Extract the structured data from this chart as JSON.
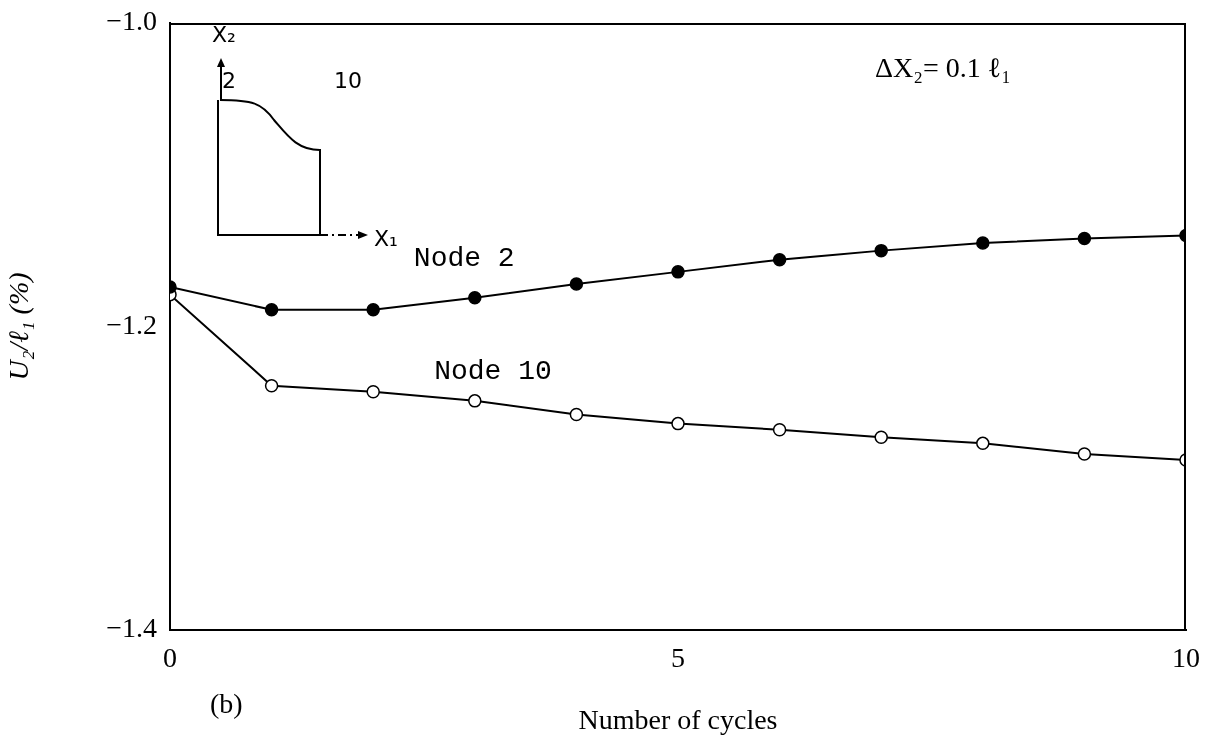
{
  "chart_data": {
    "type": "line",
    "xlabel": "Number of cycles",
    "ylabel": "U₂/ℓ₁ (%)",
    "x": [
      0,
      1,
      2,
      3,
      4,
      5,
      6,
      7,
      8,
      9,
      10
    ],
    "series": [
      {
        "name": "Node 2",
        "color": "#000000",
        "values": [
          -1.174,
          -1.189,
          -1.189,
          -1.181,
          -1.172,
          -1.164,
          -1.156,
          -1.15,
          -1.145,
          -1.142,
          -1.14
        ]
      },
      {
        "name": "Node 10",
        "color": "#000000",
        "values": [
          -1.179,
          -1.239,
          -1.243,
          -1.249,
          -1.258,
          -1.264,
          -1.268,
          -1.273,
          -1.277,
          -1.284,
          -1.288
        ]
      }
    ],
    "xlim": [
      0,
      10
    ],
    "xticks": [
      0,
      5,
      10
    ],
    "ylim": [
      -1.4,
      -1.0
    ],
    "yticks": [
      {
        "value": -1.4,
        "label": "−1.4"
      },
      {
        "value": -1.2,
        "label": "−1.2"
      },
      {
        "value": -1.0,
        "label": "−1.0"
      }
    ],
    "annotations": [
      "ΔX₂= 0.1 ℓ₁",
      "(b)",
      "X₂",
      "2",
      "10",
      "X₁"
    ],
    "grid": false,
    "legend": false,
    "marker": "circle",
    "line_style": "solid"
  }
}
